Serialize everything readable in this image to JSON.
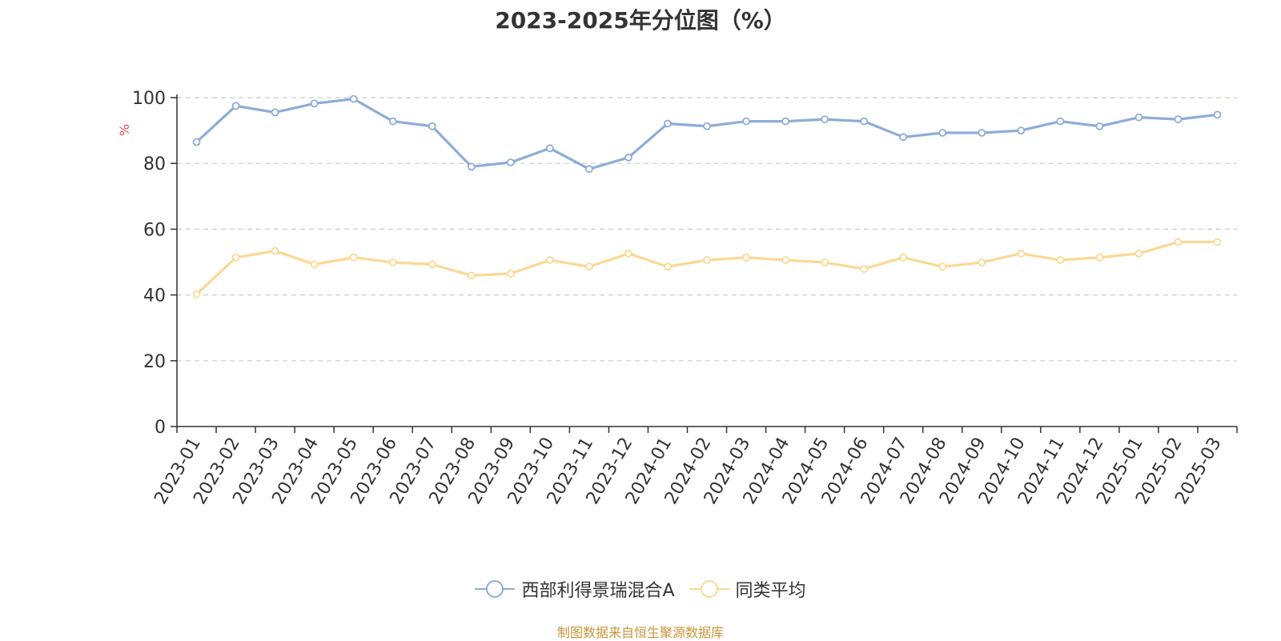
{
  "title": "2023-2025年分位图（%）",
  "source_note": "制图数据来自恒生聚源数据库",
  "colors": {
    "series_fund": "#8eacd9",
    "series_avg": "#fcd893",
    "ylabel": "#e84a4a",
    "source": "#c8963a"
  },
  "chart_data": {
    "type": "line",
    "title": "2023-2025年分位图（%）",
    "ylabel": "%",
    "xlabel": "",
    "ylim": [
      0,
      100
    ],
    "yticks": [
      0,
      20,
      40,
      60,
      80,
      100
    ],
    "grid": true,
    "legend_position": "bottom",
    "categories": [
      "2023-01",
      "2023-02",
      "2023-03",
      "2023-04",
      "2023-05",
      "2023-06",
      "2023-07",
      "2023-08",
      "2023-09",
      "2023-10",
      "2023-11",
      "2023-12",
      "2024-01",
      "2024-02",
      "2024-03",
      "2024-04",
      "2024-05",
      "2024-06",
      "2024-07",
      "2024-08",
      "2024-09",
      "2024-10",
      "2024-11",
      "2024-12",
      "2025-01",
      "2025-02",
      "2025-03"
    ],
    "series": [
      {
        "name": "西部利得景瑞混合A",
        "color": "#8eacd9",
        "values": [
          86.5,
          97.5,
          95.5,
          98.2,
          99.6,
          92.8,
          91.3,
          79.0,
          80.3,
          84.6,
          78.3,
          81.8,
          92.1,
          91.3,
          92.8,
          92.8,
          93.4,
          92.8,
          88.0,
          89.3,
          89.3,
          90.0,
          92.8,
          91.3,
          94.0,
          93.4,
          94.8
        ]
      },
      {
        "name": "同类平均",
        "color": "#fcd893",
        "values": [
          40.2,
          51.4,
          53.4,
          49.3,
          51.4,
          49.9,
          49.3,
          45.9,
          46.5,
          50.6,
          48.6,
          52.6,
          48.6,
          50.6,
          51.4,
          50.6,
          49.9,
          47.9,
          51.4,
          48.6,
          49.9,
          52.6,
          50.6,
          51.4,
          52.6,
          56.1,
          56.1
        ]
      }
    ]
  }
}
